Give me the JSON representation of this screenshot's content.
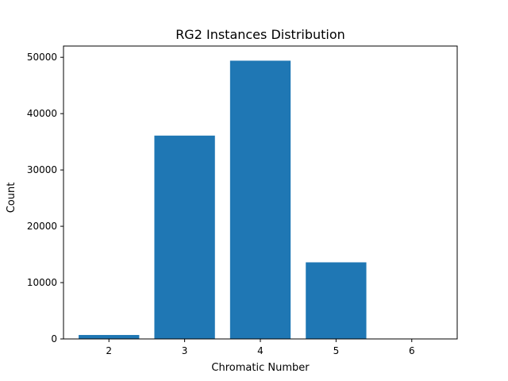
{
  "chart_data": {
    "type": "bar",
    "title": "RG2 Instances Distribution",
    "xlabel": "Chromatic Number",
    "ylabel": "Count",
    "categories": [
      "2",
      "3",
      "4",
      "5",
      "6"
    ],
    "values": [
      700,
      36100,
      49400,
      13600,
      5
    ],
    "ylim": [
      0,
      52000
    ],
    "yticks": [
      0,
      10000,
      20000,
      30000,
      40000,
      50000
    ],
    "grid": false,
    "legend": "none",
    "bar_color": "#1f77b4"
  }
}
